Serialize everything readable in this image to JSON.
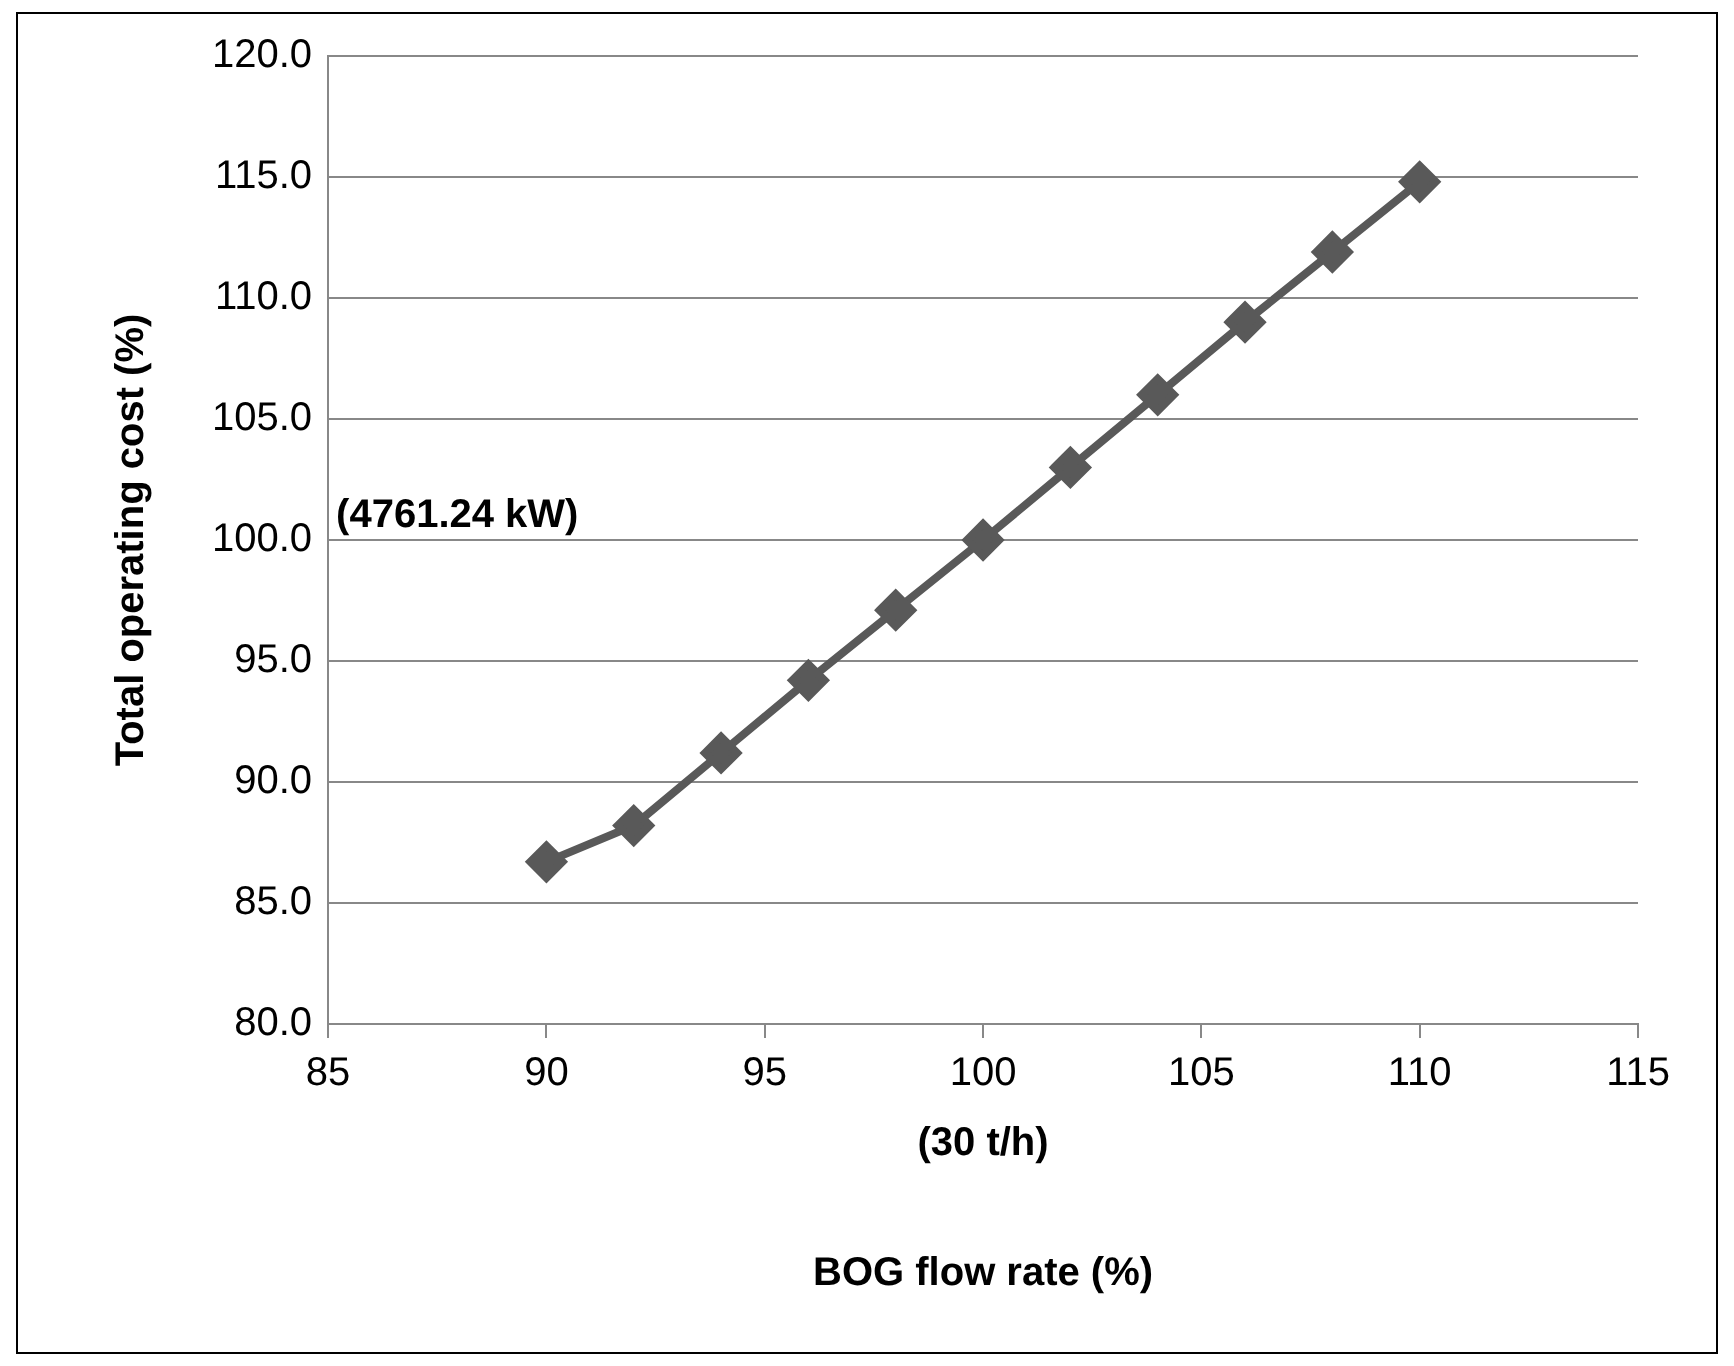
{
  "chart_data": {
    "type": "line",
    "xlabel": "BOG flow rate (%)",
    "ylabel": "Total operating cost (%)",
    "x": [
      90,
      92,
      94,
      96,
      98,
      100,
      102,
      104,
      106,
      108,
      110
    ],
    "series": [
      {
        "color": "#595959",
        "values": [
          86.7,
          88.2,
          91.2,
          94.2,
          97.1,
          100.0,
          103.0,
          106.0,
          109.0,
          111.9,
          114.8
        ]
      }
    ],
    "xlim": [
      85,
      115
    ],
    "xticks": [
      85,
      90,
      95,
      100,
      105,
      110,
      115
    ],
    "ylim": [
      80,
      120
    ],
    "yticks": [
      {
        "value": 80,
        "label": "80.0"
      },
      {
        "value": 85,
        "label": "85.0"
      },
      {
        "value": 90,
        "label": "90.0"
      },
      {
        "value": 95,
        "label": "95.0"
      },
      {
        "value": 100,
        "label": "100.0"
      },
      {
        "value": 105,
        "label": "105.0"
      },
      {
        "value": 110,
        "label": "110.0"
      },
      {
        "value": 115,
        "label": "115.0"
      },
      {
        "value": 120,
        "label": "120.0"
      }
    ],
    "annotations": [
      "(4761.24 kW)",
      "(30 t/h)"
    ],
    "grid": "y",
    "legend": false,
    "marker": "diamond",
    "line_style": "solid"
  }
}
